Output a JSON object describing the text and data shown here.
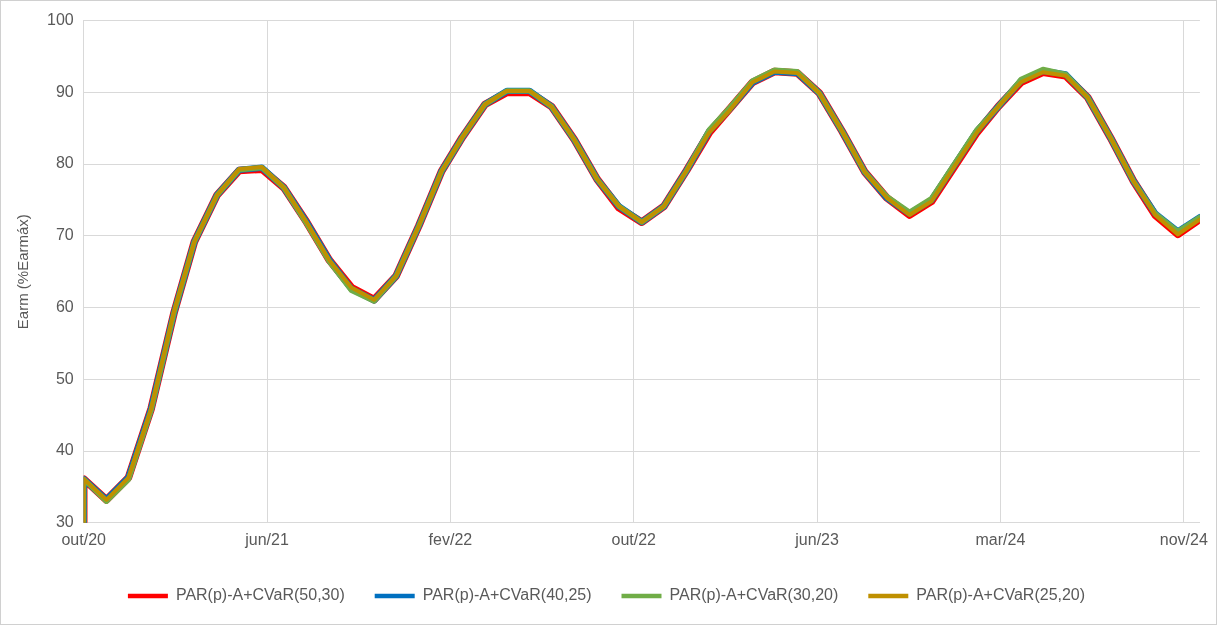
{
  "chart_data": {
    "type": "line",
    "ylabel": "Earm (%Earmáx)",
    "x": [
      "2020-10",
      "2020-10",
      "2020-11",
      "2020-12",
      "2021-01",
      "2021-02",
      "2021-03",
      "2021-04",
      "2021-05",
      "2021-06",
      "2021-07",
      "2021-08",
      "2021-09",
      "2021-10",
      "2021-11",
      "2021-12",
      "2022-01",
      "2022-02",
      "2022-03",
      "2022-04",
      "2022-05",
      "2022-06",
      "2022-07",
      "2022-08",
      "2022-09",
      "2022-10",
      "2022-11",
      "2022-12",
      "2023-01",
      "2023-02",
      "2023-03",
      "2023-04",
      "2023-05",
      "2023-06",
      "2023-07",
      "2023-08",
      "2023-09",
      "2023-10",
      "2023-11",
      "2023-12",
      "2024-01",
      "2024-02",
      "2024-03",
      "2024-04",
      "2024-05",
      "2024-06",
      "2024-07",
      "2024-08",
      "2024-09",
      "2024-10",
      "2024-11",
      "2024-12"
    ],
    "series": [
      {
        "name": "PAR(p)-A+CVaR(50,30)",
        "color": "#ff0000",
        "values": [
          30,
          36.1,
          33.2,
          36.3,
          45.9,
          59.2,
          69.2,
          75.7,
          79.1,
          79.3,
          76.7,
          71.9,
          66.6,
          62.8,
          61.1,
          64.4,
          71.4,
          79.0,
          83.7,
          88.3,
          90.0,
          90.0,
          88.0,
          83.4,
          77.9,
          73.9,
          71.9,
          74.1,
          79.1,
          84.4,
          87.7,
          91.4,
          92.9,
          92.7,
          89.9,
          84.6,
          78.9,
          75.3,
          72.9,
          74.8,
          79.6,
          84.4,
          88.0,
          91.4,
          92.8,
          92.3,
          89.3,
          83.7,
          77.7,
          72.9,
          70.2,
          72.3
        ]
      },
      {
        "name": "PAR(p)-A+CVaR(40,25)",
        "color": "#0070c0",
        "values": [
          30,
          36.1,
          33.2,
          36.3,
          45.9,
          59.2,
          69.2,
          75.7,
          79.2,
          79.5,
          76.7,
          71.9,
          66.6,
          62.6,
          61.0,
          64.4,
          71.4,
          79.0,
          83.7,
          88.3,
          90.2,
          90.2,
          88.0,
          83.4,
          77.9,
          74.1,
          71.9,
          74.1,
          79.1,
          84.6,
          87.7,
          91.4,
          92.9,
          92.7,
          89.9,
          84.6,
          78.9,
          75.3,
          73.1,
          75.0,
          79.8,
          84.6,
          88.0,
          91.6,
          93.0,
          92.5,
          89.3,
          83.7,
          77.7,
          73.1,
          70.6,
          72.6
        ]
      },
      {
        "name": "PAR(p)-A+CVaR(30,20)",
        "color": "#70ad47",
        "values": [
          30,
          36.1,
          33.0,
          36.0,
          45.7,
          59.2,
          69.2,
          75.7,
          79.2,
          79.5,
          76.7,
          71.7,
          66.4,
          62.4,
          60.9,
          64.4,
          71.4,
          79.0,
          83.7,
          88.3,
          90.2,
          90.2,
          88.0,
          83.4,
          77.9,
          74.1,
          71.9,
          74.1,
          79.1,
          84.8,
          87.9,
          91.6,
          93.1,
          92.9,
          89.9,
          84.6,
          78.9,
          75.5,
          73.3,
          75.2,
          80.0,
          84.8,
          88.0,
          91.8,
          93.2,
          92.5,
          89.3,
          83.7,
          77.7,
          73.1,
          70.6,
          72.6
        ]
      },
      {
        "name": "PAR(p)-A+CVaR(25,20)",
        "color": "#bf9000",
        "values": [
          30,
          36.1,
          33.2,
          36.3,
          45.9,
          59.4,
          69.2,
          75.7,
          79.3,
          79.6,
          76.7,
          71.9,
          66.6,
          62.8,
          61.1,
          64.4,
          71.4,
          79.0,
          83.7,
          88.3,
          90.2,
          90.2,
          88.0,
          83.4,
          77.9,
          74.1,
          71.9,
          74.1,
          79.1,
          84.4,
          87.5,
          91.4,
          92.9,
          92.7,
          89.9,
          84.6,
          78.9,
          75.3,
          72.9,
          74.8,
          79.6,
          84.4,
          88.0,
          91.4,
          92.8,
          92.3,
          89.3,
          83.7,
          77.7,
          72.9,
          70.2,
          72.3
        ]
      }
    ],
    "xlim": [
      "2020-10-01",
      "2024-12-01"
    ],
    "xticks": [
      {
        "value": "2020-10-01",
        "label": "out/20"
      },
      {
        "value": "2021-06-08",
        "label": "jun/21"
      },
      {
        "value": "2022-02-13",
        "label": "fev/22"
      },
      {
        "value": "2022-10-21",
        "label": "out/22"
      },
      {
        "value": "2023-06-28",
        "label": "jun/23"
      },
      {
        "value": "2024-03-04",
        "label": "mar/24"
      },
      {
        "value": "2024-11-09",
        "label": "nov/24"
      }
    ],
    "ylim": [
      30,
      100
    ],
    "yticks": [
      30,
      40,
      50,
      60,
      70,
      80,
      90,
      100
    ],
    "grid": true,
    "legend": "bottom",
    "marker": "none",
    "line_style": "solid"
  }
}
